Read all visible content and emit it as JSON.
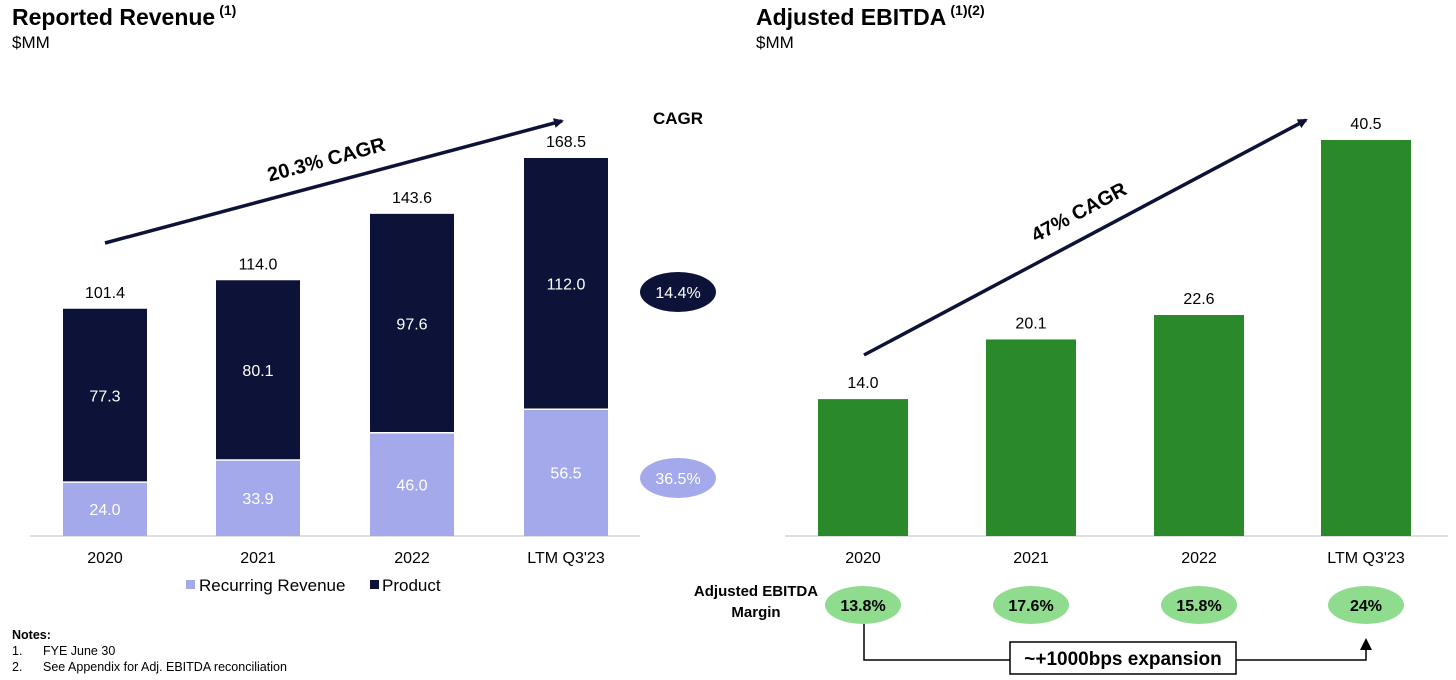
{
  "left_panel": {
    "title": "Reported Revenue",
    "title_sup": "(1)",
    "unit": "$MM",
    "cagr_arrow_label": "20.3% CAGR",
    "cagr_header": "CAGR",
    "product_cagr": "14.4%",
    "recurring_cagr": "36.5%"
  },
  "right_panel": {
    "title": "Adjusted EBITDA",
    "title_sup": "(1)(2)",
    "unit": "$MM",
    "cagr_arrow_label": "47% CAGR",
    "margin_label_line1": "Adjusted EBITDA",
    "margin_label_line2": "Margin",
    "margins": [
      "13.8%",
      "17.6%",
      "15.8%",
      "24%"
    ],
    "expansion_label": "~+1000bps expansion"
  },
  "notes": {
    "heading": "Notes:",
    "items": [
      {
        "num": "1.",
        "text": "FYE June 30"
      },
      {
        "num": "2.",
        "text": "See Appendix for Adj. EBITDA reconciliation"
      }
    ]
  },
  "colors": {
    "product": "#0d1338",
    "recurring": "#a3a9eb",
    "ebitda": "#2a8a2a",
    "margin_pill": "#8fdc8f"
  },
  "chart_data": [
    {
      "type": "bar",
      "stacked": true,
      "title": "Reported Revenue",
      "ylabel": "$MM",
      "categories": [
        "2020",
        "2021",
        "2022",
        "LTM Q3'23"
      ],
      "series": [
        {
          "name": "Recurring Revenue",
          "values": [
            24.0,
            33.9,
            46.0,
            56.5
          ],
          "labels": [
            "24.0",
            "33.9",
            "46.0",
            "56.5"
          ]
        },
        {
          "name": "Product",
          "values": [
            77.3,
            80.1,
            97.6,
            112.0
          ],
          "labels": [
            "77.3",
            "80.1",
            "97.6",
            "112.0"
          ]
        }
      ],
      "totals": [
        101.4,
        114.0,
        143.6,
        168.5
      ],
      "total_labels": [
        "101.4",
        "114.0",
        "143.6",
        "168.5"
      ],
      "legend_position": "bottom"
    },
    {
      "type": "bar",
      "title": "Adjusted EBITDA",
      "ylabel": "$MM",
      "categories": [
        "2020",
        "2021",
        "2022",
        "LTM Q3'23"
      ],
      "values": [
        14.0,
        20.1,
        22.6,
        40.5
      ],
      "value_labels": [
        "14.0",
        "20.1",
        "22.6",
        "40.5"
      ]
    }
  ]
}
